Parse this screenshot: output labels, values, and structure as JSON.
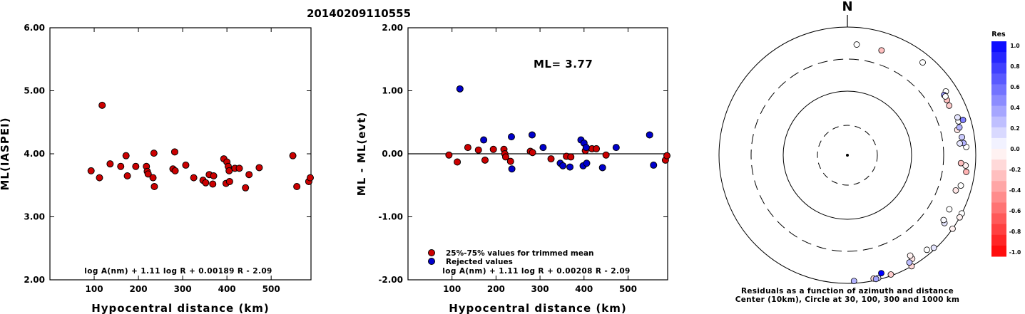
{
  "title": "20140209110555",
  "colors": {
    "used": "#cc0000",
    "rejected": "#0000cc",
    "stroke": "#000000"
  },
  "chart_data": [
    {
      "type": "scatter",
      "ylabel": "ML(IASPEI)",
      "xlabel": "Hypocentral distance (km)",
      "xlim": [
        0,
        590
      ],
      "ylim": [
        2.0,
        6.0
      ],
      "xticks": [
        "100",
        "200",
        "300",
        "400",
        "500"
      ],
      "yticks": [
        "2.00",
        "3.00",
        "4.00",
        "5.00",
        "6.00"
      ],
      "formula": "log A(nm) + 1.11 log R + 0.00189 R - 2.09",
      "points": [
        [
          93,
          3.73
        ],
        [
          112,
          3.62
        ],
        [
          118,
          4.77
        ],
        [
          136,
          3.84
        ],
        [
          160,
          3.8
        ],
        [
          172,
          3.97
        ],
        [
          175,
          3.65
        ],
        [
          194,
          3.8
        ],
        [
          218,
          3.8
        ],
        [
          220,
          3.72
        ],
        [
          222,
          3.68
        ],
        [
          235,
          4.01
        ],
        [
          233,
          3.62
        ],
        [
          236,
          3.48
        ],
        [
          278,
          3.76
        ],
        [
          282,
          4.03
        ],
        [
          283,
          3.73
        ],
        [
          307,
          3.82
        ],
        [
          325,
          3.62
        ],
        [
          346,
          3.58
        ],
        [
          352,
          3.54
        ],
        [
          360,
          3.67
        ],
        [
          368,
          3.52
        ],
        [
          370,
          3.65
        ],
        [
          393,
          3.92
        ],
        [
          398,
          3.53
        ],
        [
          400,
          3.87
        ],
        [
          403,
          3.8
        ],
        [
          405,
          3.73
        ],
        [
          406,
          3.56
        ],
        [
          418,
          3.77
        ],
        [
          428,
          3.77
        ],
        [
          442,
          3.46
        ],
        [
          450,
          3.67
        ],
        [
          473,
          3.78
        ],
        [
          549,
          3.97
        ],
        [
          558,
          3.48
        ],
        [
          585,
          3.56
        ],
        [
          590,
          3.62
        ]
      ]
    },
    {
      "type": "scatter",
      "ylabel": "ML - ML(evt)",
      "xlabel": "Hypocentral distance (km)",
      "xlim": [
        0,
        590
      ],
      "ylim": [
        -2.0,
        2.0
      ],
      "xticks": [
        "100",
        "200",
        "300",
        "400",
        "500"
      ],
      "yticks": [
        "-2.00",
        "-1.00",
        "0.00",
        "1.00",
        "2.00"
      ],
      "ml_text": "ML= 3.77",
      "formula": "log A(nm) + 1.11 log R + 0.00208 R - 2.09",
      "legend": [
        {
          "label": "25%-75% values for trimmed mean",
          "color": "#cc0000"
        },
        {
          "label": "Rejected values",
          "color": "#0000cc"
        }
      ],
      "series": [
        {
          "name": "25%-75% values for trimmed mean",
          "points": [
            [
              93,
              -0.02
            ],
            [
              112,
              -0.13
            ],
            [
              136,
              0.1
            ],
            [
              160,
              0.06
            ],
            [
              175,
              -0.1
            ],
            [
              194,
              0.07
            ],
            [
              218,
              0.07
            ],
            [
              220,
              0.0
            ],
            [
              222,
              -0.05
            ],
            [
              233,
              -0.12
            ],
            [
              278,
              0.04
            ],
            [
              283,
              0.02
            ],
            [
              325,
              -0.08
            ],
            [
              360,
              -0.04
            ],
            [
              370,
              -0.05
            ],
            [
              403,
              0.05
            ],
            [
              418,
              0.08
            ],
            [
              428,
              0.08
            ],
            [
              450,
              -0.02
            ],
            [
              585,
              -0.1
            ],
            [
              590,
              -0.03
            ]
          ]
        },
        {
          "name": "Rejected values",
          "points": [
            [
              118,
              1.03
            ],
            [
              172,
              0.22
            ],
            [
              235,
              0.27
            ],
            [
              236,
              -0.24
            ],
            [
              282,
              0.3
            ],
            [
              307,
              0.1
            ],
            [
              346,
              -0.15
            ],
            [
              352,
              -0.19
            ],
            [
              368,
              -0.21
            ],
            [
              393,
              0.22
            ],
            [
              398,
              -0.19
            ],
            [
              400,
              0.17
            ],
            [
              405,
              0.1
            ],
            [
              406,
              -0.15
            ],
            [
              442,
              -0.22
            ],
            [
              473,
              0.1
            ],
            [
              549,
              0.3
            ],
            [
              558,
              -0.18
            ]
          ]
        }
      ]
    },
    {
      "type": "scatter",
      "subtype": "polar",
      "north_label": "N",
      "caption_lines": [
        "Residuals as a function of azimuth and distance",
        "Center (10km), Circle at 30, 100, 300 and 1000 km"
      ],
      "colorbar": {
        "title": "Res",
        "ticks": [
          "1.0",
          "0.8",
          "0.6",
          "0.4",
          "0.2",
          "0.0",
          "-0.2",
          "-0.4",
          "-0.6",
          "-0.8",
          "-1.0"
        ]
      },
      "points": [
        [
          4.8,
          526,
          0.0
        ],
        [
          117,
          1046,
          0.0
        ],
        [
          119,
          1046,
          -0.05
        ],
        [
          125,
          1030,
          -0.05
        ],
        [
          140,
          838,
          0.0
        ],
        [
          148,
          796,
          -0.1
        ],
        [
          148,
          692,
          -0.05
        ],
        [
          150,
          1000,
          -0.15
        ],
        [
          160,
          954,
          -0.2
        ],
        [
          137,
          940,
          0.1
        ],
        [
          168,
          924,
          -0.15
        ],
        [
          166,
          942,
          0.1
        ],
        [
          177,
          920,
          0.3
        ],
        [
          164,
          814,
          1.0
        ],
        [
          167,
          958,
          0.35
        ],
        [
          150,
          850,
          0.25
        ],
        [
          125,
          690,
          0.1
        ],
        [
          124,
          630,
          0.02
        ],
        [
          118,
          615,
          0.0
        ],
        [
          108,
          582,
          -0.1
        ],
        [
          105,
          663,
          0.0
        ],
        [
          98,
          730,
          -0.3
        ],
        [
          95,
          695,
          -0.05
        ],
        [
          86,
          707,
          0.0
        ],
        [
          84,
          645,
          0.3
        ],
        [
          81,
          627,
          0.2
        ],
        [
          84,
          562,
          0.1
        ],
        [
          77,
          558,
          -0.1
        ],
        [
          73,
          632,
          0.0
        ],
        [
          71,
          640,
          0.1
        ],
        [
          76,
          616,
          0.3
        ],
        [
          61,
          579,
          -0.25
        ],
        [
          57,
          662,
          0.0
        ],
        [
          58,
          582,
          0.4
        ],
        [
          59,
          590,
          0.0
        ],
        [
          64,
          567,
          -0.2
        ],
        [
          73,
          755,
          0.5
        ],
        [
          39,
          719,
          0.0
        ],
        [
          18,
          510,
          -0.25
        ],
        [
          94,
          580,
          -0.25
        ]
      ]
    }
  ]
}
